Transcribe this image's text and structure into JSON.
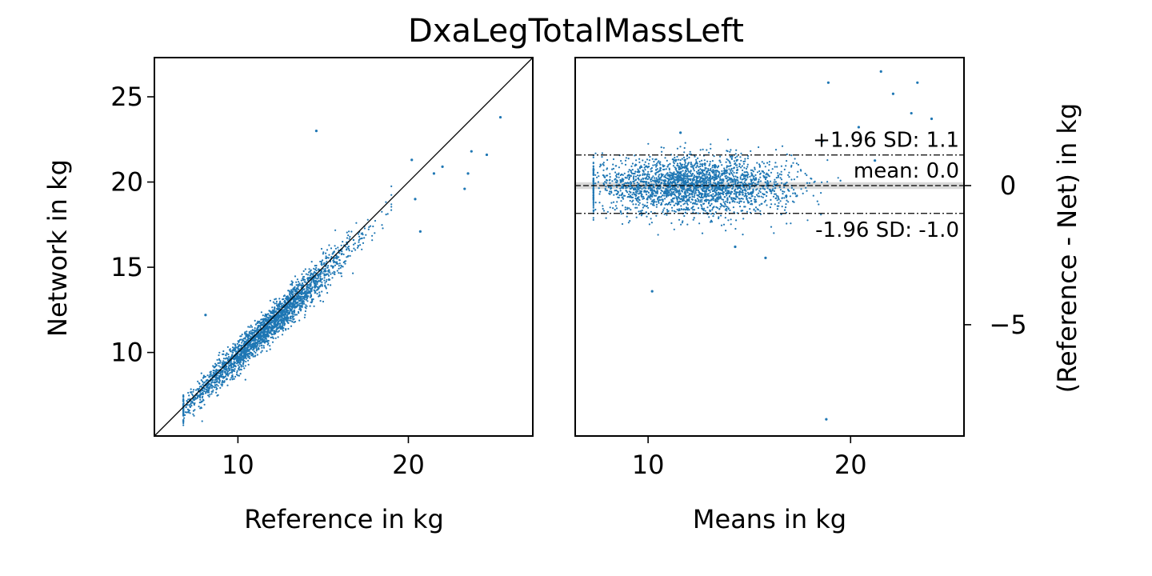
{
  "title": "DxaLegTotalMassLeft",
  "colors": {
    "points": "#1f77b4",
    "axes": "#000000",
    "band": "#d9d9d9"
  },
  "chart_data": [
    {
      "type": "scatter",
      "xlabel": "Reference in kg",
      "ylabel": "Network in kg",
      "xlim": [
        5.1,
        27.3
      ],
      "ylim": [
        5.1,
        27.3
      ],
      "x_ticks": [
        10,
        20
      ],
      "y_ticks": [
        10,
        15,
        20,
        25
      ],
      "identity_line": true,
      "cloud": {
        "n": 2600,
        "x_range": [
          6.8,
          19.0
        ],
        "slope": 0.96,
        "spread": 0.45
      },
      "outliers": [
        {
          "x": 14.6,
          "y": 23.0
        },
        {
          "x": 8.1,
          "y": 12.2
        },
        {
          "x": 25.4,
          "y": 23.8
        },
        {
          "x": 24.6,
          "y": 21.6
        },
        {
          "x": 23.7,
          "y": 21.8
        },
        {
          "x": 23.5,
          "y": 20.5
        },
        {
          "x": 23.3,
          "y": 19.6
        },
        {
          "x": 22.0,
          "y": 20.9
        },
        {
          "x": 21.5,
          "y": 20.5
        },
        {
          "x": 20.7,
          "y": 17.1
        },
        {
          "x": 20.2,
          "y": 21.3
        },
        {
          "x": 20.4,
          "y": 19.0
        }
      ]
    },
    {
      "type": "scatter",
      "xlabel": "Means in kg",
      "ylabel": "(Reference - Net) in kg",
      "xlim": [
        6.4,
        25.6
      ],
      "ylim": [
        -9.0,
        4.6
      ],
      "x_ticks": [
        10,
        20
      ],
      "y_ticks": [
        0,
        -5
      ],
      "y_tick_labels": [
        "0",
        "−5"
      ],
      "mean": 0.0,
      "upper_loa": 1.1,
      "lower_loa": -1.0,
      "annotations": {
        "upper": "+1.96 SD: 1.1",
        "mean": "mean: 0.0",
        "lower": "-1.96 SD: -1.0"
      },
      "cloud": {
        "n": 2600,
        "x_range": [
          7.3,
          19.5
        ],
        "spread": 0.5
      },
      "outliers": [
        {
          "x": 18.8,
          "y": -8.4
        },
        {
          "x": 10.2,
          "y": -3.8
        },
        {
          "x": 18.9,
          "y": 3.7
        },
        {
          "x": 21.5,
          "y": 4.1
        },
        {
          "x": 23.3,
          "y": 3.7
        },
        {
          "x": 22.1,
          "y": 3.3
        },
        {
          "x": 23.0,
          "y": 2.6
        },
        {
          "x": 20.4,
          "y": 2.1
        },
        {
          "x": 24.0,
          "y": 2.4
        },
        {
          "x": 11.6,
          "y": 1.9
        },
        {
          "x": 14.3,
          "y": -2.2
        },
        {
          "x": 15.8,
          "y": -2.6
        },
        {
          "x": 18.6,
          "y": 1.6
        },
        {
          "x": 21.2,
          "y": 0.9
        }
      ]
    }
  ]
}
